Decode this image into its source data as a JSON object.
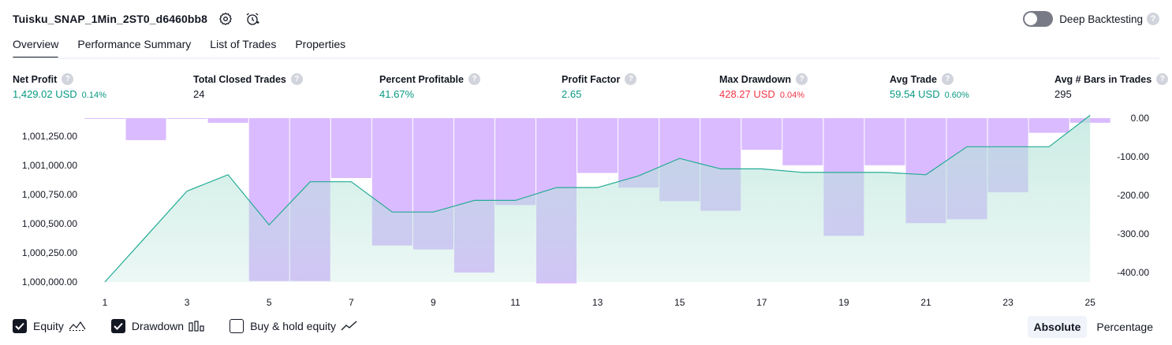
{
  "header": {
    "strategy_name": "Tuisku_SNAP_1Min_2ST0_d6460bb8",
    "deep_backtesting_label": "Deep Backtesting",
    "help_glyph": "?"
  },
  "tabs": [
    {
      "label": "Overview",
      "active": true
    },
    {
      "label": "Performance Summary",
      "active": false
    },
    {
      "label": "List of Trades",
      "active": false
    },
    {
      "label": "Properties",
      "active": false
    }
  ],
  "metrics": [
    {
      "label": "Net Profit",
      "value": "1,429.02 USD",
      "pct": "0.14%",
      "color": "green"
    },
    {
      "label": "Total Closed Trades",
      "value": "24",
      "pct": "",
      "color": "black"
    },
    {
      "label": "Percent Profitable",
      "value": "41.67%",
      "pct": "",
      "color": "green"
    },
    {
      "label": "Profit Factor",
      "value": "2.65",
      "pct": "",
      "color": "green"
    },
    {
      "label": "Max Drawdown",
      "value": "428.27 USD",
      "pct": "0.04%",
      "color": "red"
    },
    {
      "label": "Avg Trade",
      "value": "59.54 USD",
      "pct": "0.60%",
      "color": "green"
    },
    {
      "label": "Avg # Bars in Trades",
      "value": "295",
      "pct": "",
      "color": "black"
    }
  ],
  "chart_data": {
    "type": "line",
    "x": [
      1,
      2,
      3,
      4,
      5,
      6,
      7,
      8,
      9,
      10,
      11,
      12,
      13,
      14,
      15,
      16,
      17,
      18,
      19,
      20,
      21,
      22,
      23,
      24,
      25
    ],
    "x_tick_labels": [
      "1",
      "3",
      "5",
      "7",
      "9",
      "11",
      "13",
      "15",
      "17",
      "19",
      "21",
      "23",
      "25"
    ],
    "series": [
      {
        "name": "Equity",
        "type": "area",
        "axis": "left",
        "values": [
          1000000,
          1000390,
          1000780,
          1000920,
          1000490,
          1000860,
          1000860,
          1000600,
          1000600,
          1000700,
          1000700,
          1000810,
          1000810,
          1000910,
          1001060,
          1000970,
          1000970,
          1000940,
          1000940,
          1000940,
          1000920,
          1001160,
          1001160,
          1001160,
          1001430
        ]
      },
      {
        "name": "Drawdown",
        "type": "bar",
        "axis": "right",
        "values": [
          0,
          -57,
          0,
          -12,
          -422,
          -422,
          -155,
          -330,
          -340,
          -400,
          -225,
          -428,
          -142,
          -180,
          -215,
          -240,
          -82,
          -122,
          -305,
          -122,
          -272,
          -262,
          -192,
          -38,
          -12
        ]
      }
    ],
    "left_axis": {
      "ticks": [
        "1,000,000.00",
        "1,000,250.00",
        "1,000,500.00",
        "1,000,750.00",
        "1,001,000.00",
        "1,001,250.00"
      ],
      "range": [
        1000000,
        1001430
      ]
    },
    "right_axis": {
      "ticks": [
        "0.00",
        "-100.00",
        "-200.00",
        "-300.00",
        "-400.00"
      ],
      "range": [
        -428,
        0
      ]
    },
    "colors": {
      "equity_line": "#22ab94",
      "equity_fill": "#c8ebe3",
      "drawdown_fill": "#cfa8ff"
    }
  },
  "legend": {
    "equity_label": "Equity",
    "drawdown_label": "Drawdown",
    "buyhold_label": "Buy & hold equity"
  },
  "mode": {
    "absolute_label": "Absolute",
    "percentage_label": "Percentage"
  }
}
